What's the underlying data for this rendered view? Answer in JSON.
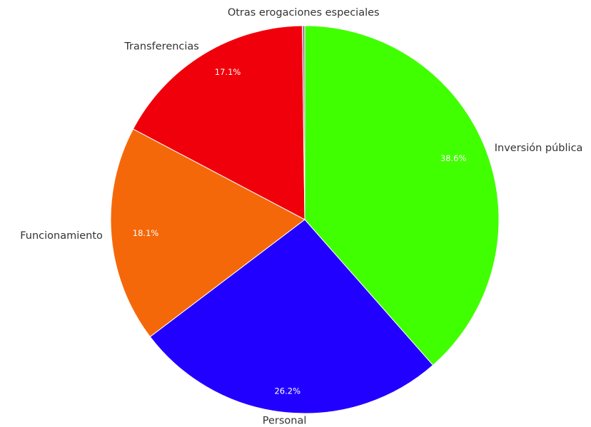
{
  "chart_data": {
    "type": "pie",
    "title": "",
    "start_angle_deg": 0,
    "direction": "clockwise",
    "legend": "none",
    "slices": [
      {
        "name": "Inversión pública",
        "value": 38.6,
        "label": "38.6%",
        "color": "#40ff00"
      },
      {
        "name": "Personal",
        "value": 26.2,
        "label": "26.2%",
        "color": "#2200ff"
      },
      {
        "name": "Funcionamiento",
        "value": 18.1,
        "label": "18.1%",
        "color": "#f5680a"
      },
      {
        "name": "Transferencias",
        "value": 17.1,
        "label": "17.1%",
        "color": "#f0000b"
      },
      {
        "name": "Otras erogaciones especiales",
        "value": 0.2,
        "label": "",
        "color": "#9a7c96"
      }
    ]
  }
}
